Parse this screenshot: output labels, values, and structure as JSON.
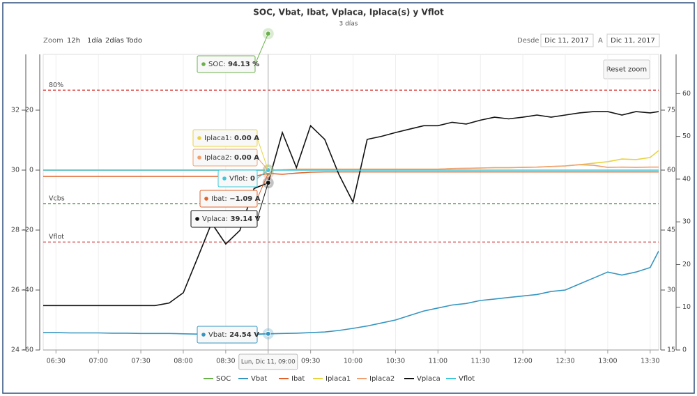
{
  "chart_data": {
    "type": "line",
    "title": "SOC, Vbat, Ibat, Vplaca, Iplaca(s) y Vflot",
    "subtitle": "3 días",
    "zoom": {
      "label": "Zoom",
      "buttons": [
        "12h",
        "1día",
        "2días",
        "Todo"
      ],
      "reset": "Reset zoom"
    },
    "range": {
      "from_label": "Desde",
      "from": "Dic 11, 2017",
      "to_label": "A",
      "to": "Dic 11, 2017"
    },
    "xlim": [
      381,
      816
    ],
    "xticks": [
      {
        "value": 390,
        "label": "06:30"
      },
      {
        "value": 420,
        "label": "07:00"
      },
      {
        "value": 450,
        "label": "07:30"
      },
      {
        "value": 480,
        "label": "08:00"
      },
      {
        "value": 510,
        "label": "08:30"
      },
      {
        "value": 540,
        "label": "09:00"
      },
      {
        "value": 570,
        "label": "09:30"
      },
      {
        "value": 600,
        "label": "10:00"
      },
      {
        "value": 630,
        "label": "10:30"
      },
      {
        "value": 660,
        "label": "11:00"
      },
      {
        "value": 690,
        "label": "11:30"
      },
      {
        "value": 720,
        "label": "12:00"
      },
      {
        "value": 750,
        "label": "12:30"
      },
      {
        "value": 780,
        "label": "13:00"
      },
      {
        "value": 810,
        "label": "13:30"
      }
    ],
    "axes": [
      {
        "ylim": [
          24,
          33.86
        ],
        "yticks": [
          24,
          26,
          28,
          30,
          32
        ]
      },
      {
        "ylim": [
          -60,
          38.6
        ],
        "yticks": [
          -60,
          -40,
          -20,
          0,
          20
        ]
      },
      {
        "ylim": [
          15,
          88.95
        ],
        "yticks": [
          15,
          30,
          45,
          60,
          75
        ]
      },
      {
        "ylim": [
          0,
          69.2
        ],
        "yticks": [
          0,
          10,
          20,
          30,
          40,
          50,
          60
        ]
      }
    ],
    "plot_lines": [
      {
        "label": "80%",
        "value": 80,
        "axis": 2,
        "color": "#d9302c"
      },
      {
        "label": "Vcbs",
        "value": 28.88,
        "axis": 0,
        "color": "#2a8a2a"
      },
      {
        "label": "Vflot",
        "value": 27.6,
        "axis": 0,
        "color": "#d96a6a"
      }
    ],
    "x": [
      381,
      390,
      400,
      410,
      420,
      430,
      440,
      450,
      460,
      470,
      480,
      490,
      500,
      510,
      520,
      530,
      540,
      550,
      560,
      570,
      580,
      590,
      600,
      610,
      620,
      630,
      640,
      650,
      660,
      670,
      680,
      690,
      700,
      710,
      720,
      730,
      740,
      750,
      760,
      770,
      780,
      790,
      800,
      810,
      816
    ],
    "series": [
      {
        "name": "SOC",
        "color": "#6ab04c",
        "axis": 2,
        "values": [
          null,
          null,
          null,
          null,
          null,
          null,
          null,
          null,
          null,
          null,
          null,
          null,
          null,
          null,
          null,
          null,
          94.13,
          null,
          null,
          null,
          null,
          null,
          null,
          null,
          null,
          null,
          null,
          null,
          null,
          null,
          null,
          null,
          null,
          null,
          null,
          null,
          null,
          null,
          null,
          null,
          null,
          null,
          null,
          null,
          null
        ]
      },
      {
        "name": "Vbat",
        "color": "#3595c0",
        "axis": 0,
        "values": [
          24.58,
          24.58,
          24.57,
          24.57,
          24.57,
          24.56,
          24.56,
          24.55,
          24.55,
          24.55,
          24.54,
          24.53,
          24.53,
          24.52,
          24.53,
          24.53,
          24.54,
          24.55,
          24.56,
          24.58,
          24.6,
          24.65,
          24.72,
          24.8,
          24.9,
          25.0,
          25.15,
          25.3,
          25.4,
          25.5,
          25.55,
          25.65,
          25.7,
          25.75,
          25.8,
          25.85,
          25.95,
          26.0,
          26.2,
          26.4,
          26.6,
          26.5,
          26.6,
          26.75,
          27.3
        ]
      },
      {
        "name": "Ibat",
        "color": "#e0622a",
        "axis": 1,
        "values": [
          -2.1,
          -2.1,
          -2.1,
          -2.1,
          -2.1,
          -2.1,
          -2.1,
          -2.1,
          -2.1,
          -2.1,
          -2.1,
          -2.1,
          -2.1,
          -2.1,
          -2.1,
          -2.1,
          -1.09,
          -1.4,
          -1.0,
          -0.7,
          -0.6,
          -0.6,
          -0.6,
          -0.6,
          -0.6,
          -0.6,
          -0.6,
          -0.6,
          -0.6,
          -0.6,
          -0.6,
          -0.6,
          -0.6,
          -0.6,
          -0.6,
          -0.6,
          -0.6,
          -0.6,
          -0.6,
          -0.6,
          -0.6,
          -0.6,
          -0.6,
          -0.6,
          -0.6
        ]
      },
      {
        "name": "Iplaca1",
        "color": "#e8d33f",
        "axis": 1,
        "values": [
          0,
          0,
          0,
          0,
          0,
          0,
          0,
          0,
          0,
          0,
          0,
          0,
          0,
          0,
          0,
          0,
          0,
          0.1,
          0.3,
          0.3,
          0.3,
          0.3,
          0.3,
          0.3,
          0.3,
          0.3,
          0.3,
          0.3,
          0.3,
          0.5,
          0.6,
          0.7,
          0.8,
          0.8,
          0.9,
          1.0,
          1.2,
          1.4,
          1.8,
          2.3,
          2.8,
          3.7,
          3.5,
          4.2,
          6.5
        ]
      },
      {
        "name": "Iplaca2",
        "color": "#f0a070",
        "axis": 1,
        "values": [
          0,
          0,
          0,
          0,
          0,
          0,
          0,
          0,
          0,
          0,
          0,
          0,
          0,
          0,
          0,
          0,
          0,
          0.1,
          0.3,
          0.3,
          0.3,
          0.3,
          0.3,
          0.3,
          0.3,
          0.3,
          0.3,
          0.3,
          0.3,
          0.5,
          0.6,
          0.7,
          0.8,
          0.8,
          0.9,
          1.0,
          1.2,
          1.4,
          1.8,
          1.6,
          0.9,
          1.0,
          0.9,
          1.0,
          1.0
        ]
      },
      {
        "name": "Vplaca",
        "color": "#111111",
        "axis": 3,
        "values": [
          10.4,
          10.4,
          10.4,
          10.4,
          10.4,
          10.4,
          10.4,
          10.4,
          10.4,
          11,
          13.4,
          21.5,
          29.7,
          24.8,
          28,
          37.8,
          39.14,
          50.9,
          42.7,
          52.5,
          49.3,
          41.1,
          34.6,
          49.3,
          50,
          50.9,
          51.7,
          52.5,
          52.5,
          53.3,
          52.9,
          53.8,
          54.5,
          54.1,
          54.5,
          55,
          54.5,
          55,
          55.5,
          55.8,
          55.8,
          55,
          55.8,
          55.5,
          55.8
        ]
      },
      {
        "name": "Vflot",
        "color": "#3fc7d8",
        "axis": 1,
        "values": [
          0,
          0,
          0,
          0,
          0,
          0,
          0,
          0,
          0,
          0,
          0,
          0,
          0,
          0,
          0,
          0,
          0,
          0,
          0,
          0,
          0,
          0,
          0,
          0,
          0,
          0,
          0,
          0,
          0,
          0,
          0,
          0,
          0,
          0,
          0,
          0,
          0,
          0,
          0,
          0,
          0,
          0,
          0,
          0,
          0
        ]
      }
    ],
    "tooltip": {
      "header": "Lun, Dic 11, 09:00",
      "index": 16,
      "labels": [
        "SOC: 94.13 %",
        "Vbat: 24.54 V",
        "Ibat: −1.09 A",
        "Iplaca1: 0.00 A",
        "Iplaca2: 0.00 A",
        "Vplaca: 39.14 V",
        "Vflot: 0"
      ]
    }
  }
}
